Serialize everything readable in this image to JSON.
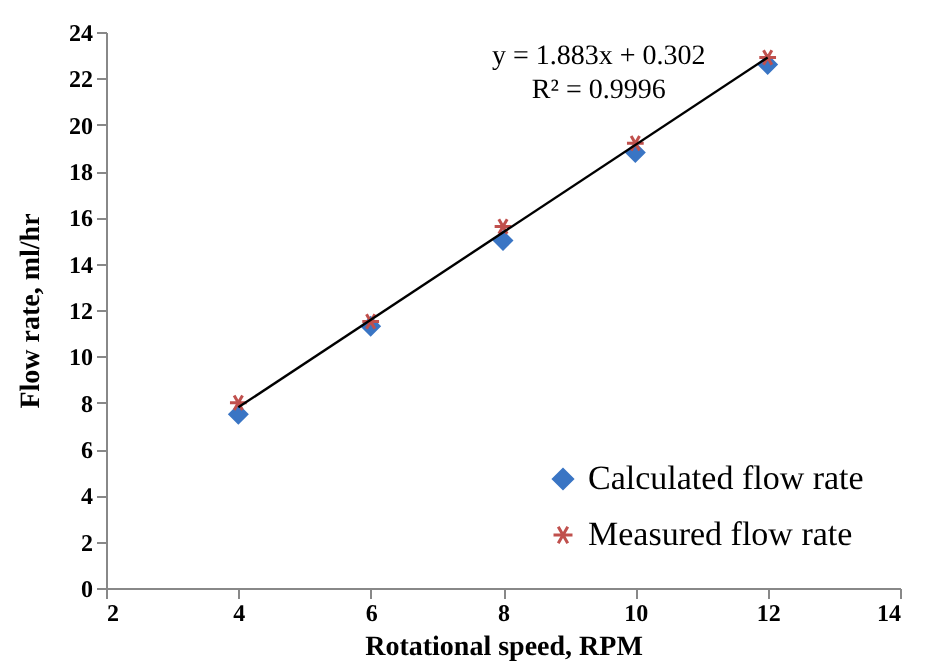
{
  "chart_data": {
    "type": "scatter",
    "xlabel": "Rotational speed, RPM",
    "ylabel": "Flow rate, ml/hr",
    "x": [
      4,
      6,
      8,
      10,
      12
    ],
    "series": [
      {
        "name": "Calculated flow rate",
        "color": "#3a75c4",
        "marker": "diamond",
        "values": [
          7.5,
          11.3,
          15.0,
          18.8,
          22.6
        ]
      },
      {
        "name": "Measured flow rate",
        "color": "#c0504d",
        "marker": "cross",
        "values": [
          8.0,
          11.5,
          15.6,
          19.2,
          22.9
        ]
      },
      {
        "type": "line",
        "color": "#000000",
        "x": [
          4,
          12
        ],
        "values": [
          7.8,
          22.9
        ]
      }
    ],
    "annotations": [
      "y = 1.883x + 0.302",
      "R² = 0.9996"
    ],
    "xlim": [
      2,
      14
    ],
    "xticks": [
      2,
      4,
      6,
      8,
      10,
      12,
      14
    ],
    "ylim": [
      0,
      24
    ],
    "yticks": [
      0,
      2,
      4,
      6,
      8,
      10,
      12,
      14,
      16,
      18,
      20,
      22,
      24
    ],
    "grid": false,
    "legend": "bottom right"
  }
}
